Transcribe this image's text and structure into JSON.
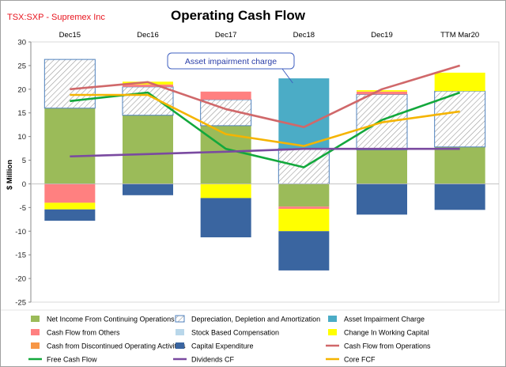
{
  "ticker": "TSX:SXP - Supremex Inc",
  "chart_data": {
    "type": "bar",
    "title": "Operating Cash Flow",
    "xlabel": "",
    "ylabel": "$ Million",
    "ylim": [
      -25,
      30
    ],
    "yticks": [
      30,
      25,
      20,
      15,
      10,
      5,
      0,
      -5,
      -10,
      -15,
      -20,
      -25
    ],
    "categories": [
      "Dec15",
      "Dec16",
      "Dec17",
      "Dec18",
      "Dec19",
      "TTM Mar20"
    ],
    "grid": false,
    "legend_position": "bottom",
    "stacked_bars": [
      {
        "name": "Net Income From Continuing Operations",
        "color": "#9bbb59",
        "pattern": "solid",
        "values": [
          16.0,
          14.5,
          12.3,
          -4.8,
          7.2,
          7.8
        ]
      },
      {
        "name": "Depreciation, Depletion and Amortization",
        "color": "#4f81bd",
        "pattern": "hatch",
        "values": [
          10.3,
          6.0,
          5.5,
          7.5,
          11.7,
          11.8
        ]
      },
      {
        "name": "Asset Impairment Charge",
        "color": "#4bacc6",
        "pattern": "solid",
        "values": [
          0,
          0,
          0,
          14.8,
          0,
          0
        ]
      },
      {
        "name": "Cash Flow from Others",
        "color": "#ff8080",
        "pattern": "solid",
        "values": [
          -4.0,
          0.5,
          1.7,
          -0.5,
          0.6,
          0
        ]
      },
      {
        "name": "Stock Based Compensation",
        "color": "#b9d7ea",
        "pattern": "solid",
        "values": [
          0,
          0,
          0,
          0,
          0,
          0
        ]
      },
      {
        "name": "Change In Working Capital",
        "color": "#ffff00",
        "pattern": "solid",
        "values": [
          -1.4,
          0.6,
          -3.0,
          -4.7,
          0.3,
          3.9
        ]
      },
      {
        "name": "Cash from Discontinued Operating Activities",
        "color": "#f79646",
        "pattern": "solid",
        "values": [
          0,
          0,
          0,
          0,
          0,
          0
        ]
      },
      {
        "name": "Capital Expenditure",
        "color": "#3a65a0",
        "pattern": "solid",
        "values": [
          -2.4,
          -2.4,
          -8.3,
          -8.3,
          -6.5,
          -5.5
        ]
      }
    ],
    "line_series": [
      {
        "name": "Cash Flow from Operations",
        "color": "#d0686a",
        "values": [
          20.0,
          21.5,
          15.8,
          12.0,
          20.0,
          25.0
        ]
      },
      {
        "name": "Free Cash Flow",
        "color": "#13a83c",
        "values": [
          17.5,
          19.3,
          7.4,
          3.5,
          13.5,
          19.3
        ]
      },
      {
        "name": "Dividends CF",
        "color": "#7a4aa0",
        "values": [
          5.8,
          6.3,
          6.8,
          7.4,
          7.4,
          7.4
        ]
      },
      {
        "name": "Core FCF",
        "color": "#f5b400",
        "values": [
          18.8,
          18.8,
          10.5,
          8.0,
          13.0,
          15.3
        ]
      }
    ],
    "legend_order": [
      "Net Income From Continuing Operations",
      "Depreciation, Depletion and Amortization",
      "Asset Impairment Charge",
      "Cash Flow from Others",
      "Stock Based Compensation",
      "Change In Working Capital",
      "Cash from Discontinued Operating Activities",
      "Capital Expenditure",
      "Cash Flow from Operations",
      "Free Cash Flow",
      "Dividends CF",
      "Core FCF"
    ],
    "annotations": [
      {
        "text": "Asset impairment charge",
        "category": "Dec18"
      }
    ]
  }
}
